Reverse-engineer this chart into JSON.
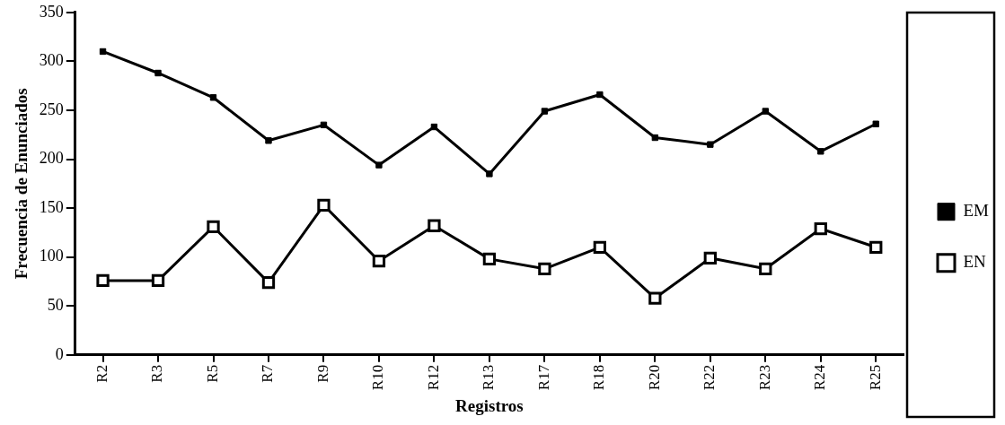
{
  "chart_data": {
    "type": "line",
    "xlabel": "Registros",
    "ylabel": "Frecuencia de Enunciados",
    "categories": [
      "R2",
      "R3",
      "R5",
      "R7",
      "R9",
      "R10",
      "R12",
      "R13",
      "R17",
      "R18",
      "R20",
      "R22",
      "R23",
      "R24",
      "R25"
    ],
    "series": [
      {
        "name": "EM",
        "color": "#000000",
        "values": [
          310,
          288,
          263,
          219,
          235,
          194,
          233,
          185,
          249,
          266,
          222,
          215,
          249,
          208,
          236
        ]
      },
      {
        "name": "EN",
        "color": "#000000",
        "values": [
          76,
          76,
          131,
          74,
          153,
          96,
          132,
          98,
          88,
          110,
          58,
          99,
          88,
          129,
          110
        ]
      }
    ],
    "ylim": [
      0,
      350
    ],
    "yticks": [
      0,
      50,
      100,
      150,
      200,
      250,
      300,
      350
    ],
    "grid": false,
    "legend": "right",
    "marker": "square",
    "line_style": "solid"
  }
}
